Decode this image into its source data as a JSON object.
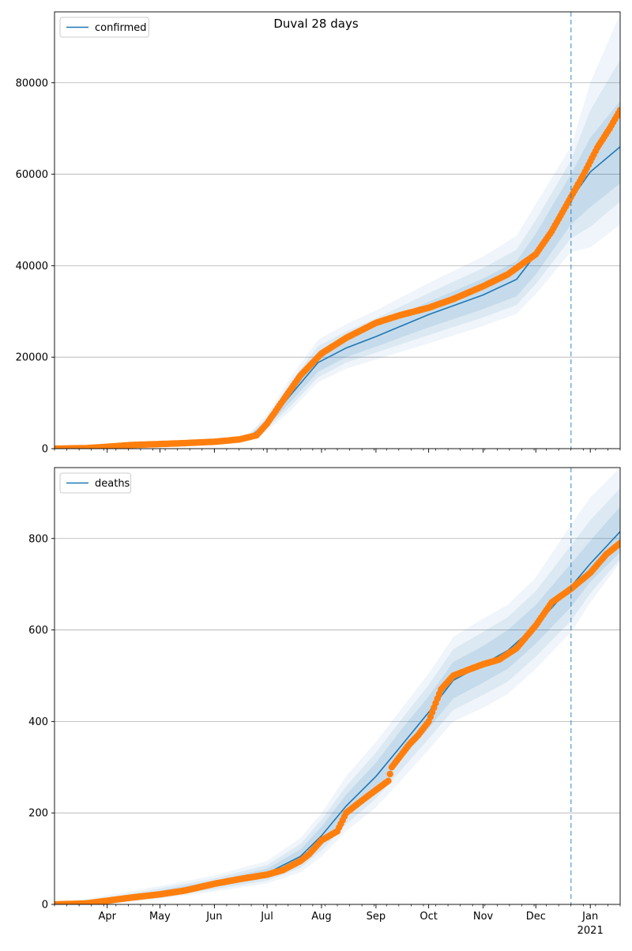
{
  "figure": {
    "title": "Duval 28 days"
  },
  "chart_data": [
    {
      "type": "line",
      "title": "",
      "xlabel": "",
      "ylabel": "",
      "x_start": "2020-03-02",
      "x_end": "2021-01-18",
      "ylim": [
        0,
        95500
      ],
      "y_ticks": [
        0,
        20000,
        40000,
        60000,
        80000
      ],
      "x_tick_labels": [],
      "grid": "horizontal",
      "legend": {
        "position": "upper-left",
        "entries": [
          "confirmed"
        ]
      },
      "forecast_start": "2020-12-21",
      "colors": {
        "model": "#1f77b4",
        "observed": "#ff7f0e",
        "band": "#1f77b4"
      },
      "series": [
        {
          "name": "confirmed",
          "style": "line",
          "x": [
            "2020-03-02",
            "2020-04-01",
            "2020-05-01",
            "2020-06-01",
            "2020-06-20",
            "2020-07-01",
            "2020-07-15",
            "2020-07-30",
            "2020-08-15",
            "2020-09-01",
            "2020-10-01",
            "2020-11-01",
            "2020-11-20",
            "2020-12-01",
            "2020-12-21",
            "2021-01-01",
            "2021-01-18"
          ],
          "y": [
            0,
            400,
            800,
            1300,
            2300,
            5500,
            12000,
            18800,
            22000,
            24500,
            29300,
            33600,
            37000,
            42500,
            54500,
            60500,
            66000
          ]
        },
        {
          "style": "scatter",
          "x": [
            "2020-03-02",
            "2020-03-20",
            "2020-04-01",
            "2020-04-15",
            "2020-05-01",
            "2020-05-15",
            "2020-06-01",
            "2020-06-15",
            "2020-06-25",
            "2020-07-01",
            "2020-07-10",
            "2020-07-20",
            "2020-08-01",
            "2020-08-15",
            "2020-09-01",
            "2020-09-15",
            "2020-10-01",
            "2020-10-15",
            "2020-11-01",
            "2020-11-15",
            "2020-12-01",
            "2020-12-10",
            "2020-12-21",
            "2020-12-28",
            "2021-01-05",
            "2021-01-12",
            "2021-01-18"
          ],
          "y": [
            0,
            100,
            400,
            800,
            1000,
            1200,
            1500,
            2000,
            2900,
            5500,
            10500,
            16000,
            20800,
            24200,
            27500,
            29200,
            30800,
            32700,
            35500,
            38100,
            42500,
            47500,
            55000,
            59800,
            65800,
            70000,
            74000
          ]
        }
      ],
      "bands": [
        {
          "y_low": [
            0,
            300,
            700,
            1200,
            2000,
            4900,
            10500,
            16800,
            20000,
            22300,
            26500,
            30500,
            33300,
            38100,
            49000,
            52800,
            58000
          ],
          "y_high": [
            0,
            550,
            950,
            1450,
            2600,
            6200,
            13600,
            21200,
            24200,
            27000,
            32100,
            37200,
            41000,
            47000,
            60000,
            68000,
            76000
          ]
        },
        {
          "y_low": [
            0,
            200,
            600,
            1100,
            1800,
            4400,
            9500,
            15600,
            18800,
            21000,
            24800,
            28700,
            31400,
            36000,
            46000,
            48500,
            54000
          ],
          "y_high": [
            0,
            650,
            1050,
            1550,
            2800,
            6800,
            14800,
            22400,
            25600,
            28500,
            34000,
            39500,
            43500,
            50000,
            63000,
            74000,
            85000
          ]
        },
        {
          "y_low": [
            0,
            100,
            500,
            1000,
            1600,
            3900,
            8500,
            14500,
            17500,
            19500,
            23000,
            26800,
            29500,
            33800,
            43000,
            44000,
            49000
          ],
          "y_high": [
            0,
            800,
            1200,
            1700,
            3000,
            7400,
            16000,
            23800,
            27200,
            30200,
            36200,
            42000,
            46500,
            53500,
            66000,
            80000,
            95000
          ]
        }
      ]
    },
    {
      "type": "line",
      "title": "",
      "xlabel": "",
      "ylabel": "",
      "x_start": "2020-03-02",
      "x_end": "2021-01-18",
      "ylim": [
        0,
        955
      ],
      "y_ticks": [
        0,
        200,
        400,
        600,
        800
      ],
      "x_tick_labels": [
        "Apr",
        "May",
        "Jun",
        "Jul",
        "Aug",
        "Sep",
        "Oct",
        "Nov",
        "Dec",
        "Jan",
        "2021"
      ],
      "grid": "horizontal",
      "legend": {
        "position": "upper-left",
        "entries": [
          "deaths"
        ]
      },
      "forecast_start": "2020-12-21",
      "colors": {
        "model": "#1f77b4",
        "observed": "#ff7f0e",
        "band": "#1f77b4"
      },
      "series": [
        {
          "name": "deaths",
          "style": "line",
          "x": [
            "2020-03-02",
            "2020-04-01",
            "2020-05-01",
            "2020-06-01",
            "2020-07-01",
            "2020-07-20",
            "2020-08-01",
            "2020-08-15",
            "2020-09-01",
            "2020-09-15",
            "2020-10-01",
            "2020-10-15",
            "2020-11-01",
            "2020-11-15",
            "2020-12-01",
            "2020-12-21",
            "2021-01-01",
            "2021-01-18"
          ],
          "y": [
            0,
            8,
            25,
            45,
            68,
            105,
            150,
            215,
            280,
            345,
            420,
            490,
            525,
            555,
            610,
            695,
            745,
            815
          ]
        },
        {
          "style": "scatter",
          "x": [
            "2020-03-02",
            "2020-03-20",
            "2020-04-01",
            "2020-04-15",
            "2020-05-01",
            "2020-05-15",
            "2020-06-01",
            "2020-06-15",
            "2020-07-01",
            "2020-07-10",
            "2020-07-20",
            "2020-07-25",
            "2020-08-01",
            "2020-08-10",
            "2020-08-15",
            "2020-08-25",
            "2020-09-01",
            "2020-09-08",
            "2020-09-10",
            "2020-09-20",
            "2020-09-25",
            "2020-10-01",
            "2020-10-08",
            "2020-10-15",
            "2020-10-25",
            "2020-11-01",
            "2020-11-10",
            "2020-11-20",
            "2020-12-01",
            "2020-12-10",
            "2020-12-21",
            "2021-01-01",
            "2021-01-10",
            "2021-01-18"
          ],
          "y": [
            0,
            2,
            8,
            15,
            22,
            30,
            45,
            55,
            65,
            75,
            95,
            110,
            140,
            160,
            200,
            230,
            250,
            270,
            300,
            350,
            370,
            400,
            470,
            500,
            515,
            525,
            535,
            560,
            610,
            660,
            690,
            725,
            765,
            790
          ]
        }
      ],
      "bands": [
        {
          "y_low": [
            0,
            5,
            20,
            38,
            58,
            90,
            130,
            190,
            250,
            315,
            385,
            450,
            485,
            515,
            570,
            650,
            705,
            770
          ],
          "y_high": [
            0,
            11,
            30,
            52,
            78,
            120,
            170,
            240,
            310,
            380,
            455,
            530,
            565,
            600,
            655,
            745,
            795,
            870
          ]
        },
        {
          "y_low": [
            0,
            3,
            16,
            33,
            52,
            80,
            118,
            175,
            232,
            292,
            362,
            425,
            458,
            487,
            542,
            620,
            680,
            755
          ],
          "y_high": [
            0,
            15,
            35,
            57,
            86,
            132,
            185,
            258,
            332,
            402,
            480,
            558,
            596,
            628,
            685,
            785,
            840,
            910
          ]
        },
        {
          "y_low": [
            0,
            0,
            12,
            28,
            46,
            70,
            105,
            160,
            212,
            270,
            338,
            400,
            430,
            460,
            515,
            595,
            660,
            748
          ],
          "y_high": [
            0,
            20,
            40,
            63,
            95,
            145,
            200,
            280,
            355,
            425,
            505,
            585,
            625,
            655,
            715,
            830,
            890,
            955
          ]
        }
      ]
    }
  ]
}
